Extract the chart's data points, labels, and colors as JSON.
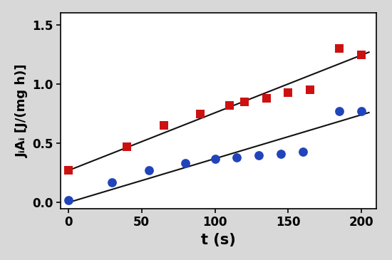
{
  "red_squares_x": [
    0,
    40,
    65,
    90,
    110,
    120,
    135,
    150,
    165,
    185,
    200
  ],
  "red_squares_y": [
    0.27,
    0.47,
    0.65,
    0.75,
    0.82,
    0.85,
    0.88,
    0.93,
    0.95,
    1.3,
    1.25
  ],
  "blue_circles_x": [
    0,
    30,
    55,
    80,
    100,
    115,
    130,
    145,
    160,
    185,
    200
  ],
  "blue_circles_y": [
    0.02,
    0.17,
    0.27,
    0.33,
    0.37,
    0.38,
    0.4,
    0.41,
    0.43,
    0.77,
    0.77
  ],
  "red_line_x": [
    0,
    205
  ],
  "red_line_y": [
    0.27,
    1.27
  ],
  "blue_line_x": [
    0,
    205
  ],
  "blue_line_y": [
    0.0,
    0.76
  ],
  "red_color": "#cc1111",
  "blue_color": "#2244bb",
  "line_color": "#111111",
  "xlabel": "t (s)",
  "ylabel_line1": "J",
  "ylabel_subscript": "i",
  "xlim": [
    -5,
    210
  ],
  "ylim": [
    -0.05,
    1.6
  ],
  "xticks": [
    0,
    50,
    100,
    150,
    200
  ],
  "yticks": [
    0,
    0.5,
    1.0,
    1.5
  ],
  "marker_size_square": 85,
  "marker_size_circle": 85,
  "xlabel_fontsize": 15,
  "ylabel_fontsize": 13,
  "tick_fontsize": 12,
  "bg_color": "#d8d8d8",
  "plot_bg_color": "#ffffff",
  "border_color": "#aaaaaa"
}
